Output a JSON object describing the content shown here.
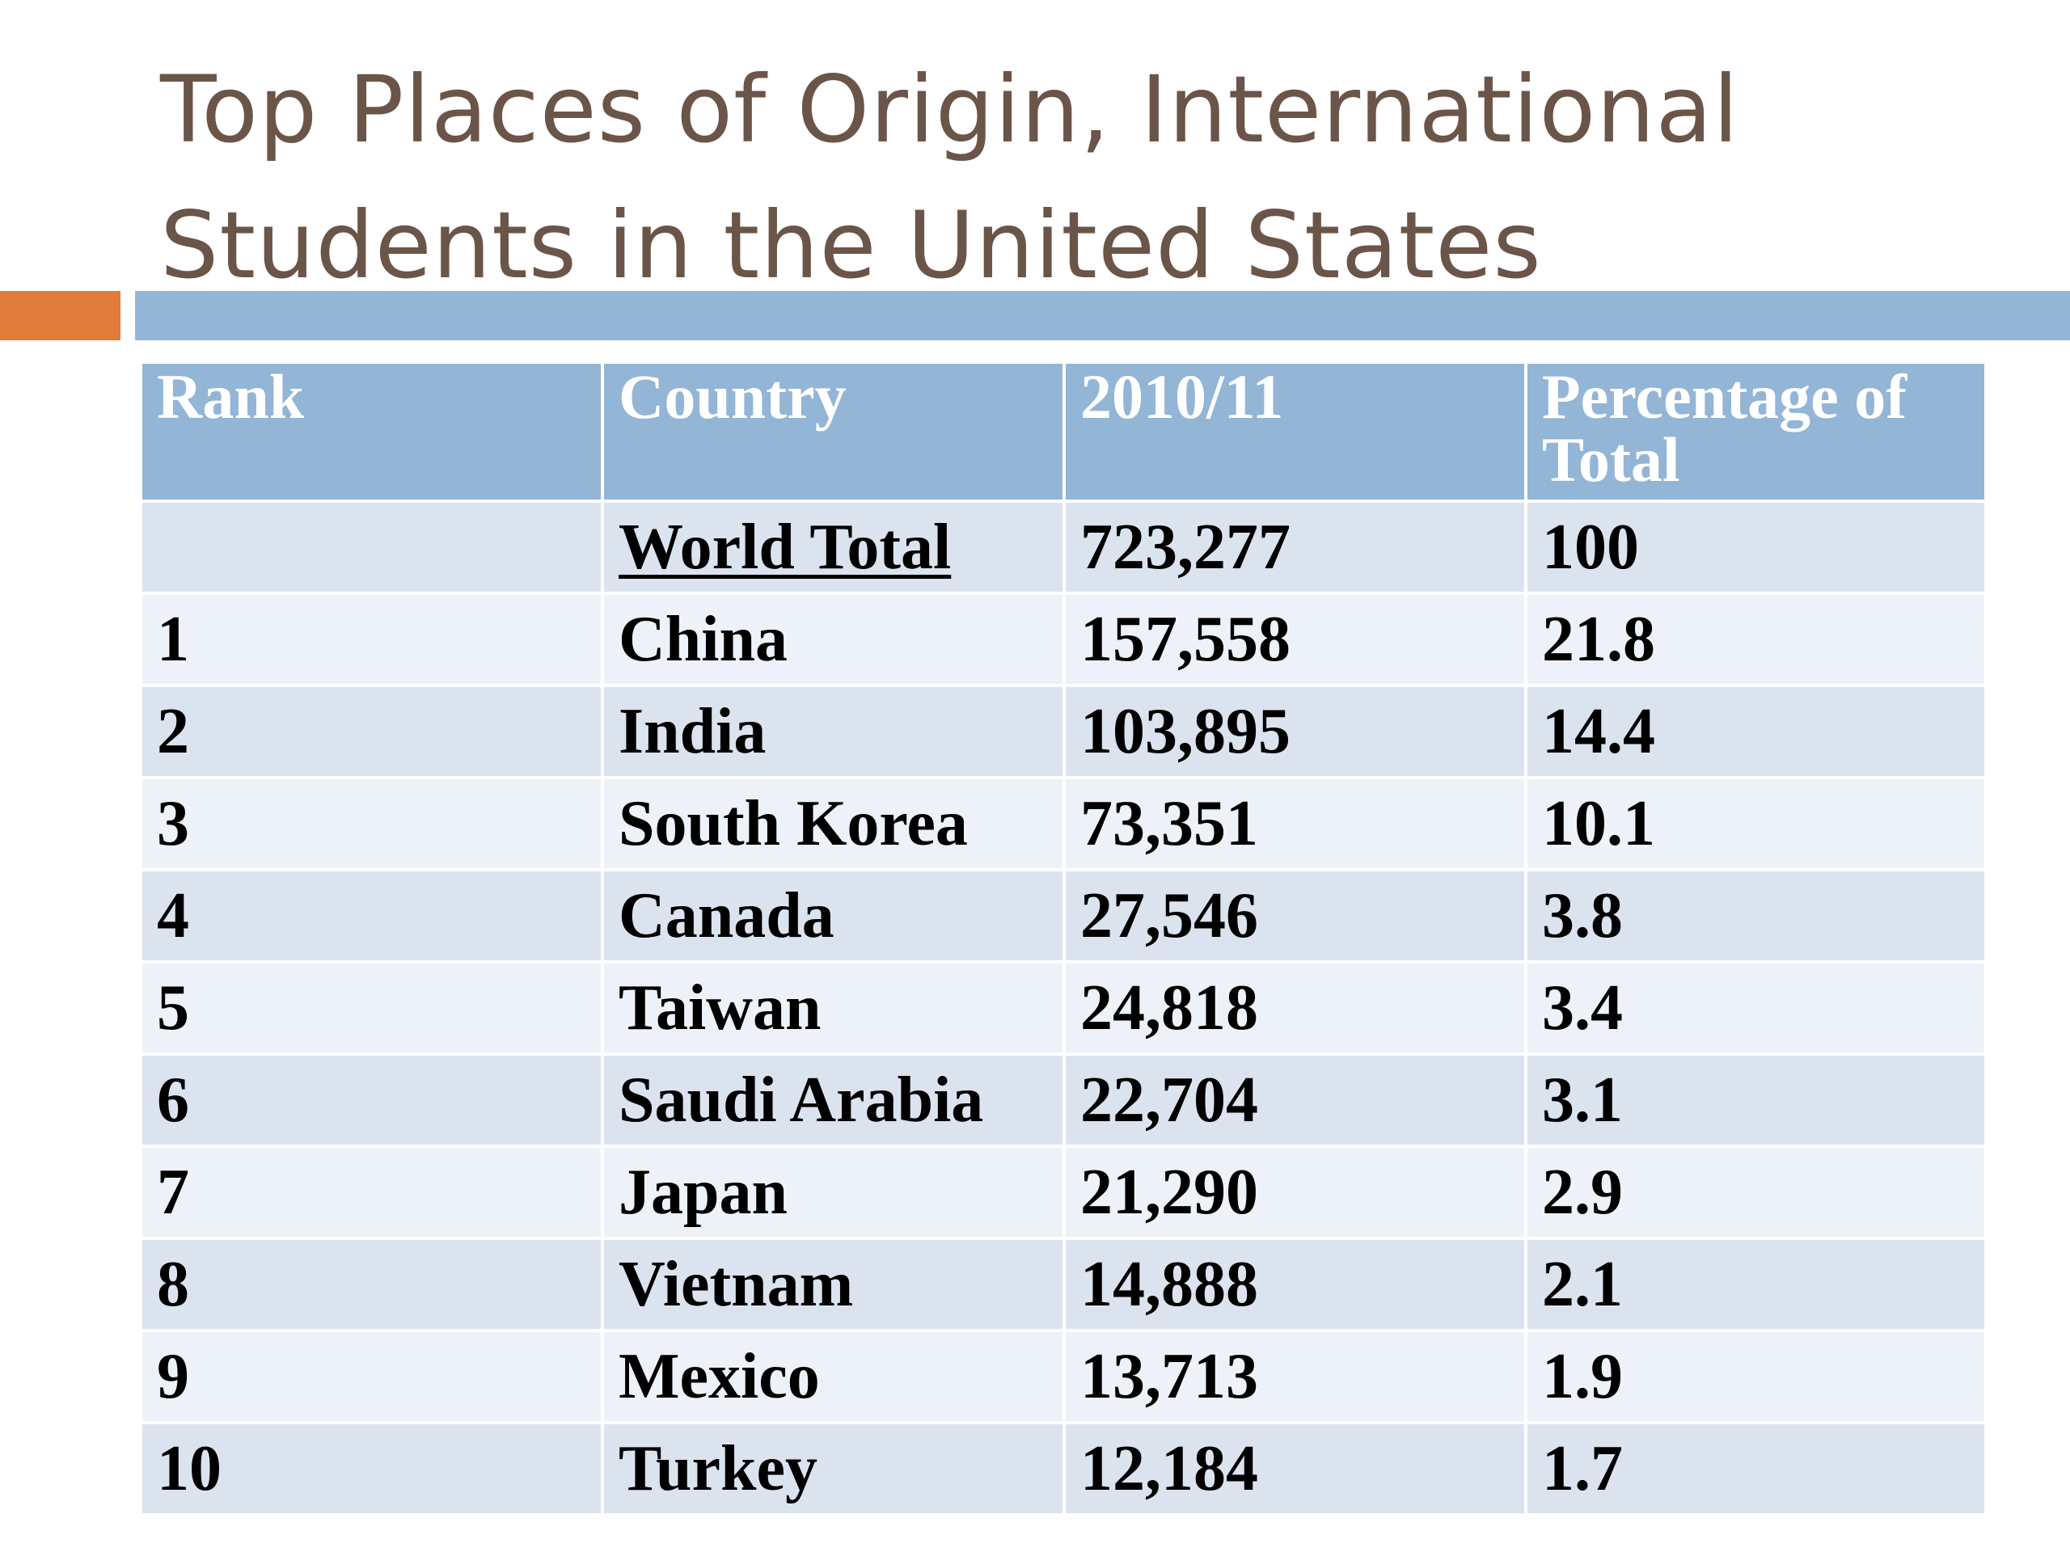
{
  "title": {
    "line1": "Top Places of Origin, International",
    "line2": "Students in the United States"
  },
  "colors": {
    "title_text": "#6b5548",
    "accent_bar": "#e07b39",
    "rule_bar": "#93b5d6",
    "header_bg": "#93b5d6",
    "row_even_bg": "#dbe3ef",
    "row_odd_bg": "#edf2f8"
  },
  "table": {
    "headers": [
      "Rank",
      "Country",
      "2010/11",
      "Percentage of Total"
    ],
    "rows": [
      [
        "",
        "World Total",
        "723,277",
        "100"
      ],
      [
        "1",
        "China",
        "157,558",
        "21.8"
      ],
      [
        "2",
        "India",
        "103,895",
        "14.4"
      ],
      [
        "3",
        "South Korea",
        "73,351",
        "10.1"
      ],
      [
        "4",
        "Canada",
        "27,546",
        "3.8"
      ],
      [
        "5",
        "Taiwan",
        "24,818",
        "3.4"
      ],
      [
        "6",
        "Saudi Arabia",
        "22,704",
        "3.1"
      ],
      [
        "7",
        "Japan",
        "21,290",
        "2.9"
      ],
      [
        "8",
        "Vietnam",
        "14,888",
        "2.1"
      ],
      [
        "9",
        "Mexico",
        "13,713",
        "1.9"
      ],
      [
        "10",
        "Turkey",
        "12,184",
        "1.7"
      ]
    ]
  }
}
